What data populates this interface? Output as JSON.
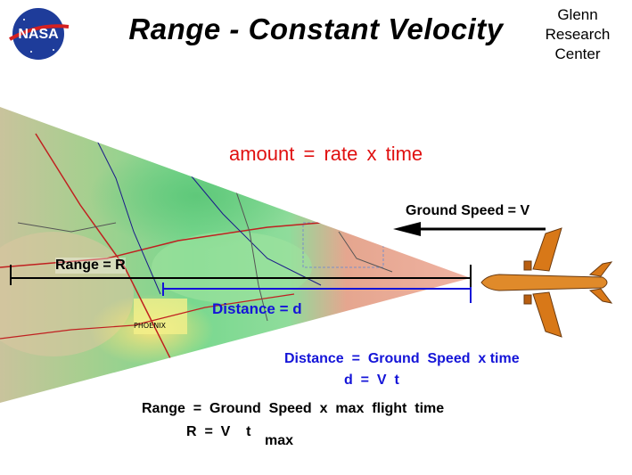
{
  "header": {
    "logo_text": "NASA",
    "title": "Range  -  Constant  Velocity",
    "center_line1": "Glenn",
    "center_line2": "Research",
    "center_line3": "Center"
  },
  "diagram": {
    "amount_eq": "amount  =  rate  x  time",
    "ground_speed_label": "Ground Speed = V",
    "range_label": "Range = R",
    "distance_label": "Distance =  d",
    "map_city_label": "PHOENIX"
  },
  "equations": {
    "distance_eq": "Distance  =  Ground  Speed  x time",
    "distance_short": "d  =  V  t",
    "range_eq": "Range  =  Ground  Speed  x  max  flight  time",
    "range_short": "R  =  V    t",
    "range_subscript": "max"
  },
  "colors": {
    "amount_red": "#e01010",
    "distance_blue": "#1414d8",
    "plane_orange": "#d87818"
  }
}
